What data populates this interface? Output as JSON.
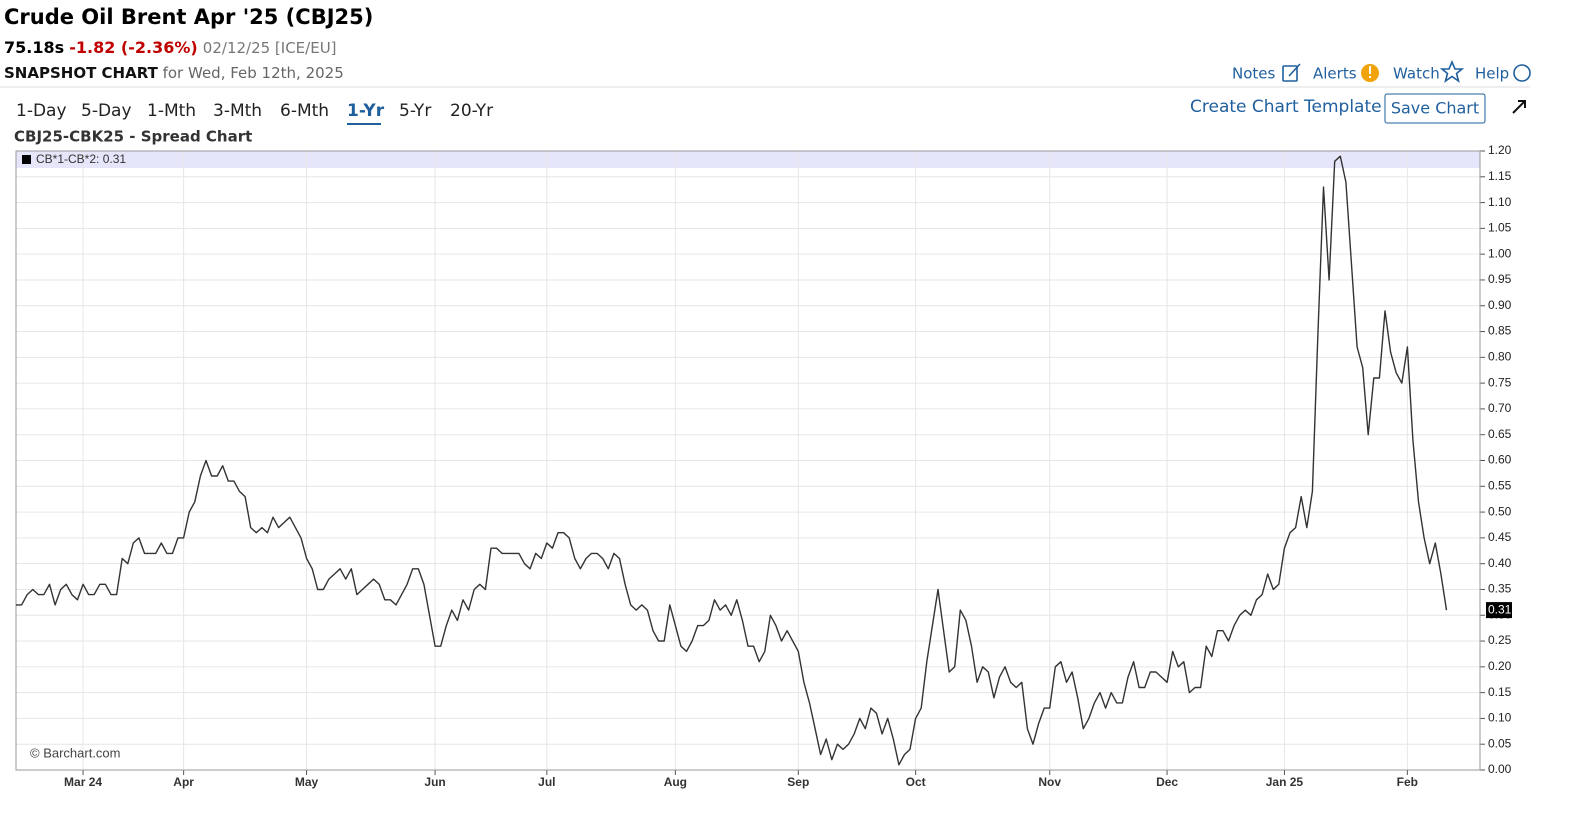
{
  "header": {
    "title": "Crude Oil Brent Apr '25 (CBJ25)",
    "price": "75.18s",
    "change": "-1.82 (-2.36%)",
    "quote_date": "02/12/25 [ICE/EU]",
    "snapshot": "SNAPSHOT CHART",
    "snapshot_date": "for Wed, Feb 12th, 2025",
    "links": [
      "Notes",
      "Alerts",
      "Watch",
      "Help"
    ]
  },
  "toolbar": {
    "periods": [
      "1-Day",
      "5-Day",
      "1-Mth",
      "3-Mth",
      "6-Mth",
      "1-Yr",
      "5-Yr",
      "20-Yr"
    ],
    "active_period": 5,
    "template": "Create Chart Template",
    "save": "Save Chart"
  },
  "chart_data": {
    "type": "line",
    "title": "CBJ25-CBK25 - Spread Chart",
    "credit": "© Barchart.com",
    "grid": true,
    "series": [
      {
        "name": "CB*1-CB*2: 0.31",
        "color": "#333333",
        "values": [
          0.32,
          0.32,
          0.34,
          0.35,
          0.34,
          0.34,
          0.36,
          0.32,
          0.35,
          0.36,
          0.34,
          0.33,
          0.36,
          0.34,
          0.34,
          0.36,
          0.36,
          0.34,
          0.34,
          0.41,
          0.4,
          0.44,
          0.45,
          0.42,
          0.42,
          0.42,
          0.44,
          0.42,
          0.42,
          0.45,
          0.45,
          0.5,
          0.52,
          0.57,
          0.6,
          0.57,
          0.57,
          0.59,
          0.56,
          0.56,
          0.54,
          0.53,
          0.47,
          0.46,
          0.47,
          0.46,
          0.49,
          0.47,
          0.48,
          0.49,
          0.47,
          0.45,
          0.41,
          0.39,
          0.35,
          0.35,
          0.37,
          0.38,
          0.39,
          0.37,
          0.39,
          0.34,
          0.35,
          0.36,
          0.37,
          0.36,
          0.33,
          0.33,
          0.32,
          0.34,
          0.36,
          0.39,
          0.39,
          0.36,
          0.3,
          0.24,
          0.24,
          0.28,
          0.31,
          0.29,
          0.33,
          0.31,
          0.35,
          0.36,
          0.35,
          0.43,
          0.43,
          0.42,
          0.42,
          0.42,
          0.42,
          0.4,
          0.39,
          0.42,
          0.41,
          0.44,
          0.43,
          0.46,
          0.46,
          0.45,
          0.41,
          0.39,
          0.41,
          0.42,
          0.42,
          0.41,
          0.39,
          0.42,
          0.41,
          0.36,
          0.32,
          0.31,
          0.32,
          0.31,
          0.27,
          0.25,
          0.25,
          0.32,
          0.28,
          0.24,
          0.23,
          0.25,
          0.28,
          0.28,
          0.29,
          0.33,
          0.31,
          0.32,
          0.3,
          0.33,
          0.29,
          0.24,
          0.24,
          0.21,
          0.23,
          0.3,
          0.28,
          0.25,
          0.27,
          0.25,
          0.23,
          0.17,
          0.13,
          0.08,
          0.03,
          0.06,
          0.02,
          0.05,
          0.04,
          0.05,
          0.07,
          0.1,
          0.08,
          0.12,
          0.11,
          0.07,
          0.1,
          0.06,
          0.01,
          0.03,
          0.04,
          0.1,
          0.12,
          0.21,
          0.28,
          0.35,
          0.27,
          0.19,
          0.2,
          0.31,
          0.29,
          0.24,
          0.17,
          0.2,
          0.19,
          0.14,
          0.18,
          0.2,
          0.17,
          0.16,
          0.17,
          0.08,
          0.05,
          0.09,
          0.12,
          0.12,
          0.2,
          0.21,
          0.17,
          0.19,
          0.14,
          0.08,
          0.1,
          0.13,
          0.15,
          0.12,
          0.15,
          0.13,
          0.13,
          0.18,
          0.21,
          0.16,
          0.16,
          0.19,
          0.19,
          0.18,
          0.17,
          0.23,
          0.2,
          0.21,
          0.15,
          0.16,
          0.16,
          0.24,
          0.22,
          0.27,
          0.27,
          0.25,
          0.28,
          0.3,
          0.31,
          0.3,
          0.33,
          0.34,
          0.38,
          0.35,
          0.36,
          0.43,
          0.46,
          0.47,
          0.53,
          0.47,
          0.54,
          0.85,
          1.13,
          0.95,
          1.18,
          1.19,
          1.14,
          0.98,
          0.82,
          0.78,
          0.65,
          0.76,
          0.76,
          0.89,
          0.81,
          0.77,
          0.75,
          0.82,
          0.64,
          0.52,
          0.45,
          0.4,
          0.44,
          0.38,
          0.31
        ]
      }
    ],
    "xlim": [
      0,
      262
    ],
    "xticks": [
      {
        "value": 12,
        "label": "Mar 24"
      },
      {
        "value": 30,
        "label": "Apr"
      },
      {
        "value": 52,
        "label": "May"
      },
      {
        "value": 75,
        "label": "Jun"
      },
      {
        "value": 95,
        "label": "Jul"
      },
      {
        "value": 118,
        "label": "Aug"
      },
      {
        "value": 140,
        "label": "Sep"
      },
      {
        "value": 161,
        "label": "Oct"
      },
      {
        "value": 185,
        "label": "Nov"
      },
      {
        "value": 206,
        "label": "Dec"
      },
      {
        "value": 227,
        "label": "Jan 25"
      },
      {
        "value": 249,
        "label": "Feb"
      }
    ],
    "ylim": [
      0,
      1.2
    ],
    "yticks": [
      {
        "value": 0,
        "label": "0.00"
      },
      {
        "value": 0.05,
        "label": "0.05"
      },
      {
        "value": 0.1,
        "label": "0.10"
      },
      {
        "value": 0.15,
        "label": "0.15"
      },
      {
        "value": 0.2,
        "label": "0.20"
      },
      {
        "value": 0.25,
        "label": "0.25"
      },
      {
        "value": 0.3,
        "label": "0.30"
      },
      {
        "value": 0.35,
        "label": "0.35"
      },
      {
        "value": 0.4,
        "label": "0.40"
      },
      {
        "value": 0.45,
        "label": "0.45"
      },
      {
        "value": 0.5,
        "label": "0.50"
      },
      {
        "value": 0.55,
        "label": "0.55"
      },
      {
        "value": 0.6,
        "label": "0.60"
      },
      {
        "value": 0.65,
        "label": "0.65"
      },
      {
        "value": 0.7,
        "label": "0.70"
      },
      {
        "value": 0.75,
        "label": "0.75"
      },
      {
        "value": 0.8,
        "label": "0.80"
      },
      {
        "value": 0.85,
        "label": "0.85"
      },
      {
        "value": 0.9,
        "label": "0.90"
      },
      {
        "value": 0.95,
        "label": "0.95"
      },
      {
        "value": 1,
        "label": "1.00"
      },
      {
        "value": 1.05,
        "label": "1.05"
      },
      {
        "value": 1.1,
        "label": "1.10"
      },
      {
        "value": 1.15,
        "label": "1.15"
      },
      {
        "value": 1.2,
        "label": "1.20"
      }
    ]
  }
}
